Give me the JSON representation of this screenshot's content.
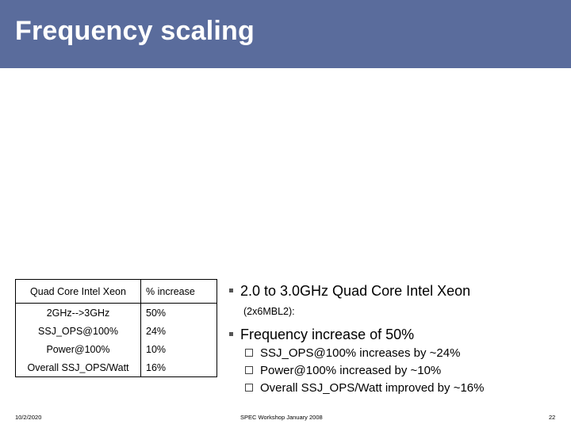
{
  "slide": {
    "title": "Frequency scaling"
  },
  "table": {
    "header": [
      "Quad Core Intel Xeon",
      "% increase"
    ],
    "rows": [
      [
        "2GHz-->3GHz",
        "50%"
      ],
      [
        "SSJ_OPS@100%",
        "24%"
      ],
      [
        "Power@100%",
        "10%"
      ],
      [
        "Overall SSJ_OPS/Watt",
        "16%"
      ]
    ]
  },
  "bullets": [
    {
      "text": "2.0 to 3.0GHz Quad Core Intel Xeon",
      "subtext": "(2x6MBL2):"
    },
    {
      "text": "Frequency increase of 50%",
      "subitems": [
        "SSJ_OPS@100% increases by ~24%",
        "Power@100% increased by ~10%",
        "Overall SSJ_OPS/Watt improved by ~16%"
      ]
    }
  ],
  "footer": {
    "date": "10/2/2020",
    "center": "SPEC Workshop January 2008",
    "page": "22"
  },
  "colors": {
    "title_bar": "#5a6c9c",
    "title_text": "#ffffff"
  }
}
